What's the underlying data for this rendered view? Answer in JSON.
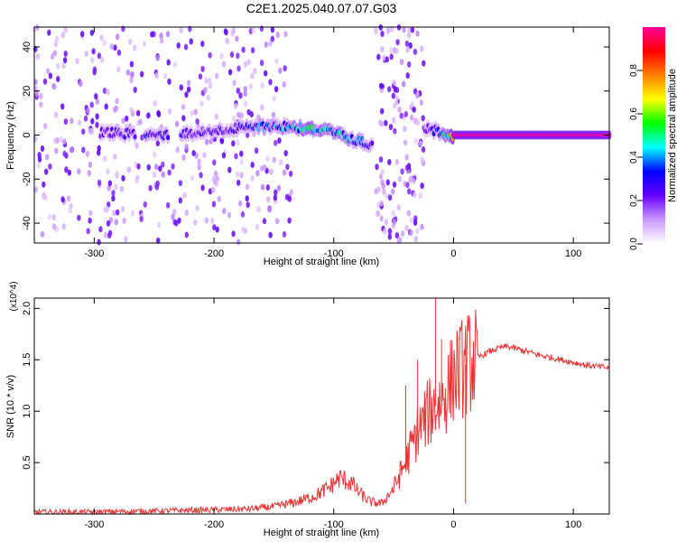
{
  "title": "C2E1.2025.040.07.07.G03",
  "chart_data": [
    {
      "type": "heatmap",
      "title": "C2E1.2025.040.07.07.G03",
      "xlabel": "Height of straight line (km)",
      "ylabel": "Frequency (Hz)",
      "xlim": [
        -350,
        130
      ],
      "ylim": [
        -49,
        49
      ],
      "xticks": [
        -300,
        -200,
        -100,
        0,
        100
      ],
      "xtick_labels": [
        "-300",
        "-200",
        "-100",
        "0",
        "100"
      ],
      "yticks": [
        -40,
        -20,
        0,
        20,
        40
      ],
      "ytick_labels": [
        "-40",
        "-20",
        "0",
        "20",
        "40"
      ],
      "colorbar": {
        "label": "Normalized spectral amplitude",
        "range": [
          0,
          1
        ],
        "ticks": [
          0.0,
          0.2,
          0.4,
          0.6,
          0.8
        ],
        "tick_labels": [
          "0.0",
          "0.2",
          "0.4",
          "0.6",
          "0.8"
        ],
        "colors": [
          "#ffffff",
          "#cc99ff",
          "#6600ff",
          "#0000ff",
          "#00ffff",
          "#00ff00",
          "#ffff00",
          "#ff8000",
          "#ff0000",
          "#ff0099"
        ]
      },
      "ridge": [
        {
          "x": -285,
          "y": 1,
          "a": 0.25
        },
        {
          "x": -250,
          "y": 0,
          "a": 0.35
        },
        {
          "x": -215,
          "y": 1,
          "a": 0.25
        },
        {
          "x": -180,
          "y": 3,
          "a": 0.3
        },
        {
          "x": -160,
          "y": 4,
          "a": 0.4
        },
        {
          "x": -140,
          "y": 4,
          "a": 0.45
        },
        {
          "x": -120,
          "y": 3,
          "a": 0.55
        },
        {
          "x": -100,
          "y": 1,
          "a": 0.5
        },
        {
          "x": -85,
          "y": -2,
          "a": 0.45
        },
        {
          "x": -72,
          "y": -4,
          "a": 0.3
        },
        {
          "x": -20,
          "y": 3,
          "a": 0.3
        },
        {
          "x": -10,
          "y": 1,
          "a": 0.45
        },
        {
          "x": 0,
          "y": 0,
          "a": 0.8
        },
        {
          "x": 50,
          "y": 0,
          "a": 1.0
        },
        {
          "x": 130,
          "y": 0,
          "a": 1.0
        }
      ],
      "noise_bands": [
        {
          "x0": -350,
          "x1": -135,
          "density": 0.5
        },
        {
          "x0": -65,
          "x1": -25,
          "density": 0.9
        }
      ]
    },
    {
      "type": "line",
      "xlabel": "Height of straight line (km)",
      "ylabel": "SNR (10 * v/v)",
      "y_multiplier": "(x10^4)",
      "xlim": [
        -350,
        130
      ],
      "ylim": [
        0,
        2.1
      ],
      "xticks": [
        -300,
        -200,
        -100,
        0,
        100
      ],
      "xtick_labels": [
        "-300",
        "-200",
        "-100",
        "0",
        "100"
      ],
      "yticks": [
        0.5,
        1.0,
        1.5,
        2.0
      ],
      "ytick_labels": [
        "0.5",
        "1.0",
        "1.5",
        "2.0"
      ],
      "color": "#ee3333",
      "x": [
        -350,
        -300,
        -250,
        -200,
        -170,
        -150,
        -130,
        -115,
        -105,
        -95,
        -85,
        -80,
        -70,
        -60,
        -50,
        -40,
        -30,
        -20,
        -15,
        -10,
        -5,
        0,
        10,
        20,
        30,
        40,
        45,
        55,
        70,
        90,
        110,
        130
      ],
      "y": [
        0.02,
        0.02,
        0.03,
        0.04,
        0.05,
        0.07,
        0.12,
        0.18,
        0.25,
        0.35,
        0.3,
        0.22,
        0.12,
        0.1,
        0.25,
        0.5,
        0.8,
        1.0,
        1.05,
        1.1,
        1.2,
        1.35,
        1.45,
        1.52,
        1.58,
        1.62,
        1.63,
        1.6,
        1.55,
        1.5,
        1.45,
        1.42
      ],
      "spikes": [
        {
          "x": -15,
          "y": 2.1
        },
        {
          "x": -30,
          "y": 1.5
        },
        {
          "x": -40,
          "y": 1.25
        },
        {
          "x": -10,
          "y": 1.7
        },
        {
          "x": 10,
          "y": 0.1
        }
      ]
    }
  ]
}
